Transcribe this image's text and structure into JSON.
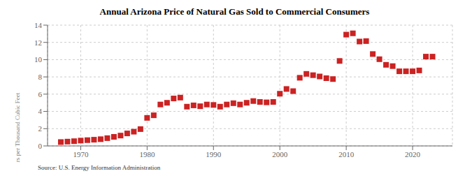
{
  "chart_data": {
    "type": "scatter",
    "title": "Annual Arizona Price of Natural Gas Sold to Commercial Consumers",
    "ylabel": "Dollars per Thousand Cubic Feet",
    "annotations": [
      "Source: U.S. Energy Information Administration"
    ],
    "x": [
      1967,
      1968,
      1969,
      1970,
      1971,
      1972,
      1973,
      1974,
      1975,
      1976,
      1977,
      1978,
      1979,
      1980,
      1981,
      1982,
      1983,
      1984,
      1985,
      1986,
      1987,
      1988,
      1989,
      1990,
      1991,
      1992,
      1993,
      1994,
      1995,
      1996,
      1997,
      1998,
      1999,
      2000,
      2001,
      2002,
      2003,
      2004,
      2005,
      2006,
      2007,
      2008,
      2009,
      2010,
      2011,
      2012,
      2013,
      2014,
      2015,
      2016,
      2017,
      2018,
      2019,
      2020,
      2021,
      2022,
      2023
    ],
    "values": [
      0.45,
      0.5,
      0.55,
      0.62,
      0.67,
      0.72,
      0.78,
      0.9,
      1.05,
      1.2,
      1.45,
      1.65,
      1.95,
      3.25,
      3.55,
      4.8,
      5.0,
      5.5,
      5.6,
      4.55,
      4.7,
      4.6,
      4.8,
      4.75,
      4.55,
      4.8,
      4.95,
      4.8,
      5.0,
      5.2,
      5.1,
      5.05,
      5.1,
      6.05,
      6.6,
      6.35,
      7.9,
      8.35,
      8.2,
      8.05,
      7.85,
      7.75,
      9.85,
      12.9,
      13.05,
      12.1,
      12.15,
      10.65,
      10.05,
      9.4,
      9.25,
      8.65,
      8.65,
      8.65,
      8.75,
      10.35,
      10.35
    ],
    "color": "#cc2222",
    "marker": "square",
    "xlim": [
      1965,
      2026
    ],
    "ylim": [
      0,
      14
    ],
    "xticks": [
      1970,
      1980,
      1990,
      2000,
      2010,
      2020
    ],
    "yticks": [
      0,
      2,
      4,
      6,
      8,
      10,
      12,
      14
    ],
    "grid": true
  }
}
